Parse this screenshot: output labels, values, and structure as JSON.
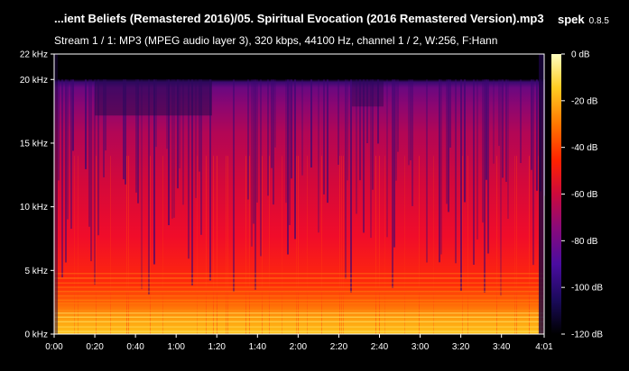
{
  "window": {
    "title": "...ient Beliefs (Remastered 2016)/05. Spiritual Evocation (2016 Remastered Version).mp3",
    "app_name": "spek",
    "app_version": "0.8.5"
  },
  "stream_info": "Stream 1 / 1: MP3 (MPEG audio layer 3), 320 kbps, 44100 Hz, channel 1 / 2, W:256, F:Hann",
  "chart_data": {
    "type": "heatmap",
    "title": "",
    "x_axis": {
      "label": "",
      "unit": "time",
      "range_seconds": [
        0,
        241
      ],
      "tick_labels": [
        "0:00",
        "0:20",
        "0:40",
        "1:00",
        "1:20",
        "1:40",
        "2:00",
        "2:20",
        "2:40",
        "3:00",
        "3:20",
        "3:40",
        "4:01"
      ]
    },
    "y_axis": {
      "label": "",
      "unit": "kHz",
      "range": [
        0,
        22
      ],
      "tick_labels": [
        "0 kHz",
        "5 kHz",
        "10 kHz",
        "15 kHz",
        "20 kHz",
        "22 kHz"
      ]
    },
    "color_scale": {
      "range_db": [
        -120,
        0
      ],
      "tick_labels": [
        "0 dB",
        "-20 dB",
        "-40 dB",
        "-60 dB",
        "-80 dB",
        "-100 dB",
        "-120 dB"
      ],
      "colors": [
        "#000000",
        "#1a0a5a",
        "#4a0ca0",
        "#8a0a7a",
        "#cc0a3c",
        "#ff2200",
        "#ff7700",
        "#ffcc22",
        "#ffffc0"
      ]
    },
    "description_cutoff_khz": 20
  }
}
